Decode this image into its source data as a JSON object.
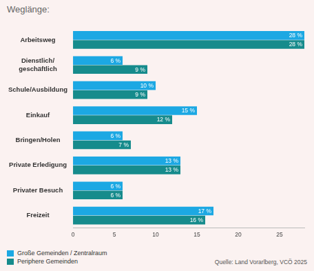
{
  "chart_data": {
    "type": "bar",
    "orientation": "horizontal",
    "title": "Weglänge:",
    "source": "Quelle: Land Vorarlberg, VCÖ 2025",
    "categories": [
      "Arbeitsweg",
      "Dienstlich/\ngeschäftlich",
      "Schule/Ausbildung",
      "Einkauf",
      "Bringen/Holen",
      "Private Erledigung",
      "Privater Besuch",
      "Freizeit"
    ],
    "series": [
      {
        "name": "Große Gemeinden / Zentralraum",
        "color": "#1ca8e3",
        "values": [
          28,
          6,
          10,
          15,
          6,
          13,
          6,
          17
        ],
        "value_labels": [
          "28 %",
          "6 %",
          "10 %",
          "15 %",
          "6 %",
          "13 %",
          "6 %",
          "17 %"
        ]
      },
      {
        "name": "Periphere Gemeinden",
        "color": "#168b8c",
        "values": [
          28,
          9,
          9,
          12,
          7,
          13,
          6,
          16
        ],
        "value_labels": [
          "28 %",
          "9 %",
          "9 %",
          "12 %",
          "7 %",
          "13 %",
          "6 %",
          "16 %"
        ]
      }
    ],
    "xlim": [
      0,
      28
    ],
    "xticks": [
      0,
      5,
      10,
      15,
      20,
      25
    ],
    "grid": false,
    "legend": "bottom left",
    "data_labels": true
  }
}
